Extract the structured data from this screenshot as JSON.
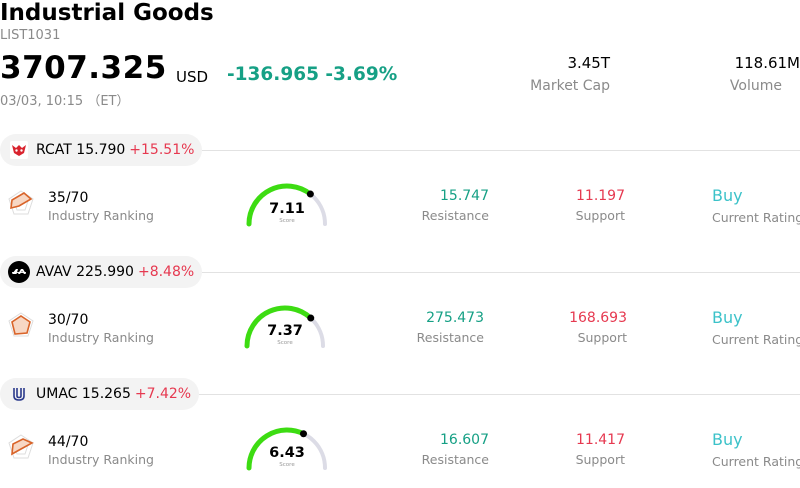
{
  "header": {
    "title": "Industrial Goods",
    "code": "LIST1031",
    "price": "3707.325",
    "currency": "USD",
    "change": "-136.965 -3.69%",
    "datetime": "03/03, 10:15 （ET）",
    "market_cap_value": "3.45T",
    "market_cap_label": "Market Cap",
    "volume_value": "118.61M",
    "volume_label": "Volume"
  },
  "stocks": [
    {
      "ticker": "RCAT 15.790",
      "change": "+15.51%",
      "logo": "rcat-logo-icon",
      "ranking": "35/70",
      "ranking_label": "Industry Ranking",
      "score": "7.11",
      "score_value": 7.11,
      "score_label": "Score",
      "resistance": "15.747",
      "resistance_label": "Resistance",
      "support": "11.197",
      "support_label": "Support",
      "rating": "Buy",
      "rating_label": "Current Rating"
    },
    {
      "ticker": "AVAV 225.990",
      "change": "+8.48%",
      "logo": "avav-logo-icon",
      "ranking": "30/70",
      "ranking_label": "Industry Ranking",
      "score": "7.37",
      "score_value": 7.37,
      "score_label": "Score",
      "resistance": "275.473",
      "resistance_label": "Resistance",
      "support": "168.693",
      "support_label": "Support",
      "rating": "Buy",
      "rating_label": "Current Rating"
    },
    {
      "ticker": "UMAC 15.265",
      "change": "+7.42%",
      "logo": "umac-logo-icon",
      "ranking": "44/70",
      "ranking_label": "Industry Ranking",
      "score": "6.43",
      "score_value": 6.43,
      "score_label": "Score",
      "resistance": "16.607",
      "resistance_label": "Resistance",
      "support": "11.417",
      "support_label": "Support",
      "rating": "Buy",
      "rating_label": "Current Rating"
    }
  ],
  "colors": {
    "positive": "#16a085",
    "negative": "#e63950",
    "rating": "#3cc2c9",
    "gauge_fill": "#3ddc12",
    "gauge_track": "#dcdce6",
    "rank_icon": "#d9642a"
  }
}
